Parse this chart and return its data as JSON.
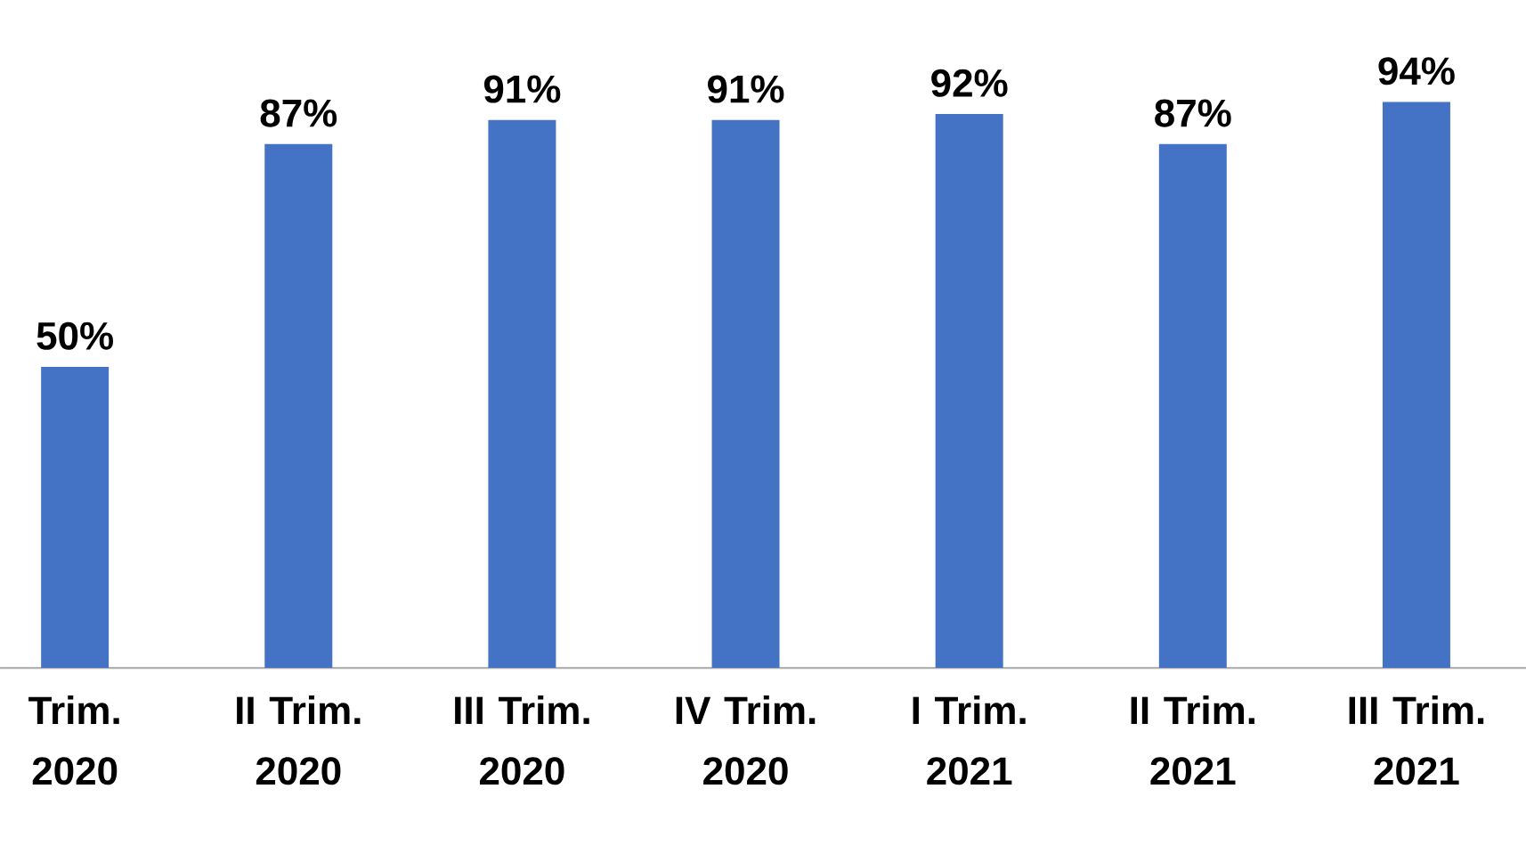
{
  "chart_data": {
    "type": "bar",
    "categories": [
      "Trim. 2020",
      "II Trim. 2020",
      "III Trim. 2020",
      "IV Trim. 2020",
      "I Trim. 2021",
      "II Trim. 2021",
      "III Trim. 2021"
    ],
    "values": [
      50,
      87,
      91,
      91,
      92,
      87,
      94
    ],
    "value_labels": [
      "50%",
      "87%",
      "91%",
      "91%",
      "92%",
      "87%",
      "94%"
    ],
    "color": "#4472c4"
  }
}
